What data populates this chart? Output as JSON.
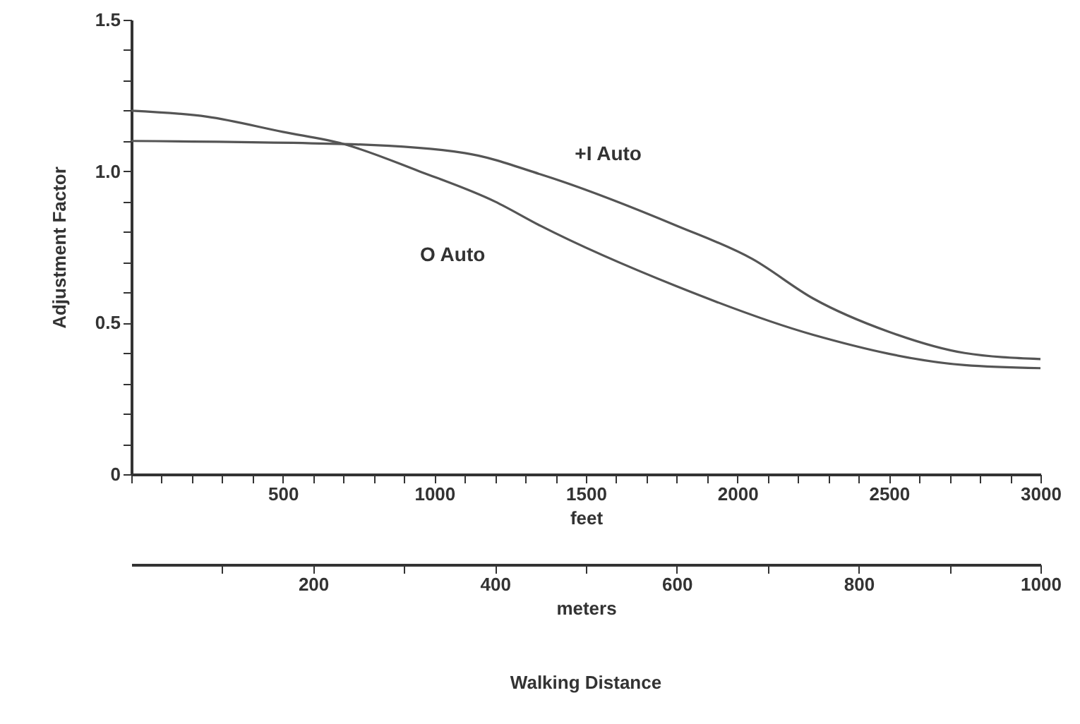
{
  "chart_data": {
    "type": "line",
    "ylabel": "Adjustment Factor",
    "xlabel": "feet",
    "x2label": "meters",
    "annotations": [
      "Walking Distance"
    ],
    "xlim": [
      0,
      3000
    ],
    "xticks": [
      {
        "value": 0,
        "label": null
      },
      {
        "value": 100,
        "label": null
      },
      {
        "value": 200,
        "label": null
      },
      {
        "value": 300,
        "label": null
      },
      {
        "value": 400,
        "label": null
      },
      500,
      {
        "value": 600,
        "label": null
      },
      {
        "value": 700,
        "label": null
      },
      {
        "value": 800,
        "label": null
      },
      {
        "value": 900,
        "label": null
      },
      1000,
      {
        "value": 1100,
        "label": null
      },
      {
        "value": 1200,
        "label": null
      },
      {
        "value": 1300,
        "label": null
      },
      {
        "value": 1400,
        "label": null
      },
      1500,
      {
        "value": 1600,
        "label": null
      },
      {
        "value": 1700,
        "label": null
      },
      {
        "value": 1800,
        "label": null
      },
      {
        "value": 1900,
        "label": null
      },
      2000,
      {
        "value": 2100,
        "label": null
      },
      {
        "value": 2200,
        "label": null
      },
      {
        "value": 2300,
        "label": null
      },
      {
        "value": 2400,
        "label": null
      },
      2500,
      {
        "value": 2600,
        "label": null
      },
      {
        "value": 2700,
        "label": null
      },
      {
        "value": 2800,
        "label": null
      },
      {
        "value": 2900,
        "label": null
      },
      3000
    ],
    "x2lim": [
      0,
      1000
    ],
    "x2ticks": [
      {
        "value": 100,
        "label": null
      },
      200,
      {
        "value": 300,
        "label": null
      },
      400,
      {
        "value": 500,
        "label": null
      },
      600,
      {
        "value": 700,
        "label": null
      },
      800,
      {
        "value": 900,
        "label": null
      },
      1000
    ],
    "ylim": [
      0,
      1.5
    ],
    "yticks": [
      0,
      {
        "value": 0.1,
        "label": null
      },
      {
        "value": 0.2,
        "label": null
      },
      {
        "value": 0.3,
        "label": null
      },
      {
        "value": 0.4,
        "label": null
      },
      0.5,
      {
        "value": 0.6,
        "label": null
      },
      {
        "value": 0.7,
        "label": null
      },
      {
        "value": 0.8,
        "label": null
      },
      {
        "value": 0.9,
        "label": null
      },
      {
        "value": 1.0,
        "label": "1.0"
      },
      {
        "value": 1.1,
        "label": null
      },
      {
        "value": 1.2,
        "label": null
      },
      {
        "value": 1.3,
        "label": null
      },
      {
        "value": 1.4,
        "label": null
      },
      1.5
    ],
    "grid": false,
    "marker": "none",
    "line_style": "solid",
    "series": [
      {
        "name": "+I Auto",
        "color": "#555555",
        "x": [
          0,
          700,
          1100,
          1350,
          1800,
          2050,
          2250,
          2500,
          2750,
          3000
        ],
        "values": [
          1.1,
          1.09,
          1.06,
          0.99,
          0.82,
          0.71,
          0.58,
          0.47,
          0.4,
          0.38
        ]
      },
      {
        "name": "O Auto",
        "color": "#555555",
        "x": [
          0,
          250,
          500,
          700,
          950,
          1200,
          1350,
          1800,
          2250,
          2750,
          3000
        ],
        "values": [
          1.2,
          1.18,
          1.13,
          1.09,
          1.0,
          0.9,
          0.82,
          0.62,
          0.46,
          0.36,
          0.35
        ]
      }
    ]
  }
}
